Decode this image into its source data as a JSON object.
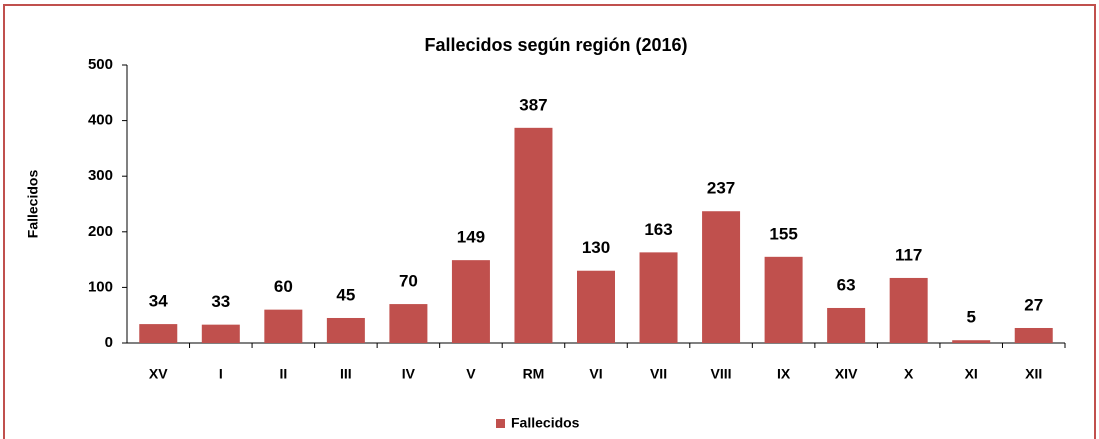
{
  "chart_data": {
    "type": "bar",
    "title": "Fallecidos según región (2016)",
    "y_label": "Fallecidos",
    "categories": [
      "XV",
      "I",
      "II",
      "III",
      "IV",
      "V",
      "RM",
      "VI",
      "VII",
      "VIII",
      "IX",
      "XIV",
      "X",
      "XI",
      "XII"
    ],
    "series": [
      {
        "name": "Fallecidos",
        "color": "#c0504d",
        "values": [
          34,
          33,
          60,
          45,
          70,
          149,
          387,
          130,
          163,
          237,
          155,
          63,
          117,
          5,
          27
        ]
      }
    ],
    "ylim": [
      0,
      500
    ],
    "yticks": [
      0,
      100,
      200,
      300,
      400,
      500
    ],
    "grid": false,
    "legend": "bottom"
  }
}
